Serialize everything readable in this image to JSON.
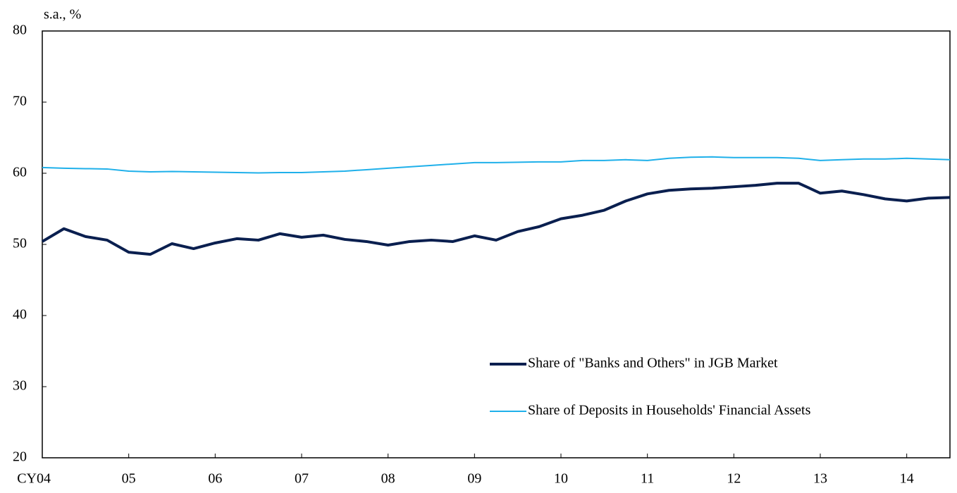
{
  "chart_data": {
    "type": "line",
    "y_axis_label": "s.a., %",
    "categories": [
      "CY04",
      null,
      null,
      null,
      "05",
      null,
      null,
      null,
      "06",
      null,
      null,
      null,
      "07",
      null,
      null,
      null,
      "08",
      null,
      null,
      null,
      "09",
      null,
      null,
      null,
      "10",
      null,
      null,
      null,
      "11",
      null,
      null,
      null,
      "12",
      null,
      null,
      null,
      "13",
      null,
      null,
      null,
      "14",
      null,
      null
    ],
    "ylim": [
      20,
      80
    ],
    "yticks": [
      20,
      30,
      40,
      50,
      60,
      70,
      80
    ],
    "legend": "lower right",
    "series": [
      {
        "name": "Share of \"Banks and Others\" in JGB Market",
        "color": "#0a1f4f",
        "line_width": 4,
        "values": [
          50.4,
          52.2,
          51.1,
          50.6,
          48.9,
          48.6,
          50.1,
          49.4,
          50.2,
          50.8,
          50.6,
          51.5,
          51.0,
          51.3,
          50.7,
          50.4,
          49.9,
          50.4,
          50.6,
          50.4,
          51.2,
          50.6,
          51.8,
          52.5,
          53.6,
          54.1,
          54.8,
          56.1,
          57.1,
          57.6,
          57.8,
          57.9,
          58.1,
          58.3,
          58.6,
          58.6,
          57.2,
          57.5,
          57.0,
          56.4,
          56.1,
          56.5,
          56.6
        ]
      },
      {
        "name": "Share of Deposits in Households' Financial Assets",
        "color": "#1fb0ea",
        "line_width": 2,
        "values": [
          60.8,
          60.7,
          60.65,
          60.6,
          60.3,
          60.2,
          60.25,
          60.2,
          60.15,
          60.1,
          60.05,
          60.1,
          60.1,
          60.2,
          60.3,
          60.5,
          60.7,
          60.9,
          61.1,
          61.3,
          61.5,
          61.5,
          61.55,
          61.6,
          61.6,
          61.8,
          61.8,
          61.9,
          61.8,
          62.1,
          62.25,
          62.3,
          62.2,
          62.2,
          62.2,
          62.1,
          61.8,
          61.9,
          62.0,
          62.0,
          62.1,
          62.0,
          61.9
        ]
      }
    ]
  }
}
